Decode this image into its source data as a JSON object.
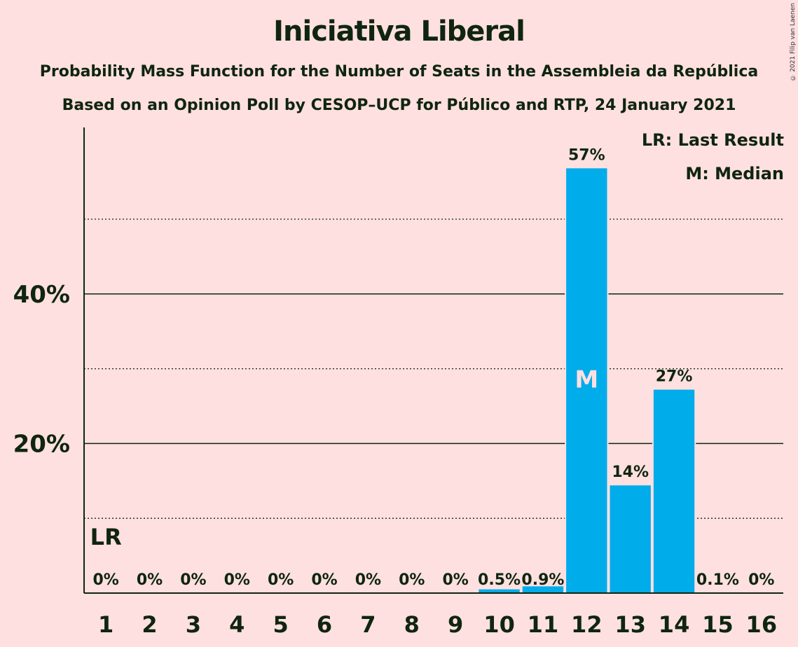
{
  "chart_data": {
    "type": "bar",
    "title": "Iniciativa Liberal",
    "subtitle_line1": "Probability Mass Function for the Number of Seats in the Assembleia da República",
    "subtitle_line2": "Based on an Opinion Poll by CESOP–UCP for Público and RTP, 24 January 2021",
    "categories": [
      "1",
      "2",
      "3",
      "4",
      "5",
      "6",
      "7",
      "8",
      "9",
      "10",
      "11",
      "12",
      "13",
      "14",
      "15",
      "16"
    ],
    "values": [
      0,
      0,
      0,
      0,
      0,
      0,
      0,
      0,
      0,
      0.5,
      0.9,
      57,
      14,
      27,
      0.1,
      0
    ],
    "value_labels": [
      "0%",
      "0%",
      "0%",
      "0%",
      "0%",
      "0%",
      "0%",
      "0%",
      "0%",
      "0.5%",
      "0.9%",
      "57%",
      "14%",
      "27%",
      "0.1%",
      "0%"
    ],
    "plot_values": [
      0,
      0,
      0,
      0,
      0,
      0,
      0,
      0,
      0,
      0.5,
      0.9,
      56.8,
      14.4,
      27.2,
      0.1,
      0
    ],
    "ylim": [
      0,
      62
    ],
    "y_ticks": [
      20,
      40
    ],
    "y_tick_labels": [
      "20%",
      "40%"
    ],
    "y_minor_gridlines": [
      10,
      30,
      50
    ],
    "bar_color": "#00acea",
    "last_result_category": "1",
    "last_result_marker": "LR",
    "median_category": "12",
    "median_marker": "M",
    "legend": {
      "last_result": "LR: Last Result",
      "median": "M: Median",
      "position": "top-right"
    }
  },
  "copyright": "© 2021 Filip van Laenen"
}
